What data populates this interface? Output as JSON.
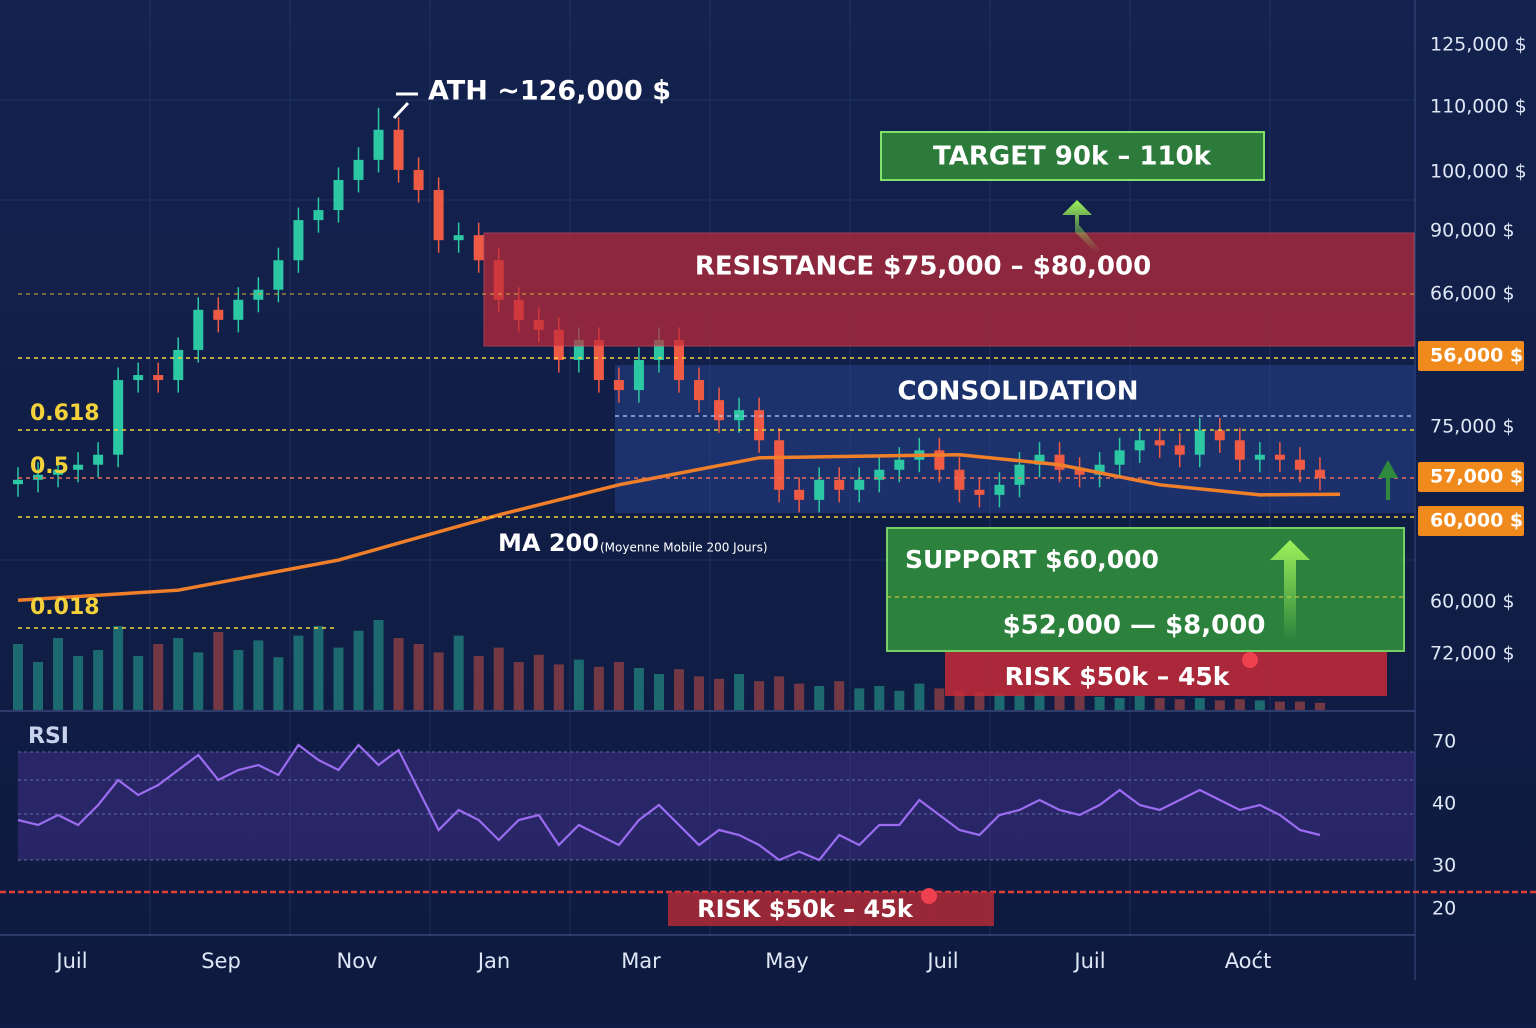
{
  "chart_data": [
    {
      "type": "candlestick",
      "x_labels": [
        "Juil",
        "Sep",
        "Nov",
        "Jan",
        "Mar",
        "May",
        "Juil",
        "Juil",
        "Aoćt"
      ],
      "xlim": [
        0,
        67
      ],
      "ylim": [
        30000,
        140000
      ],
      "y_axis_labels": [
        {
          "text": "125,000 $",
          "highlight": false
        },
        {
          "text": "110,000 $",
          "highlight": false
        },
        {
          "text": "100,000 $",
          "highlight": false
        },
        {
          "text": "90,000 $",
          "highlight": false
        },
        {
          "text": "66,000 $",
          "highlight": false
        },
        {
          "text": "56,000 $",
          "highlight": true
        },
        {
          "text": "75,000 $",
          "highlight": false
        },
        {
          "text": "57,000 $",
          "highlight": true
        },
        {
          "text": "60,000 $",
          "highlight": true
        },
        {
          "text": "60,000 $",
          "highlight": false
        },
        {
          "text": "72,000 $",
          "highlight": false
        }
      ],
      "colors": {
        "up": "#2cc7a3",
        "down": "#ef5a45"
      },
      "open": [
        66000,
        66700,
        67500,
        68300,
        69100,
        70700,
        82600,
        83400,
        82600,
        87400,
        93800,
        92200,
        95400,
        97000,
        101700,
        108100,
        109700,
        114500,
        117700,
        122500,
        116100,
        112900,
        104900,
        105700,
        101700,
        95400,
        92200,
        90600,
        85800,
        89000,
        82600,
        81000,
        85800,
        89000,
        82600,
        79400,
        76200,
        77800,
        73000,
        65100,
        63500,
        66700,
        65100,
        66700,
        68300,
        69900,
        71400,
        68300,
        65100,
        64300,
        65900,
        69100,
        70700,
        68300,
        67500,
        69100,
        71400,
        73000,
        72200,
        70700,
        74600,
        73000,
        69900,
        70700,
        69900,
        68300
      ],
      "high": [
        68700,
        69500,
        70300,
        71100,
        72700,
        84600,
        85400,
        85400,
        89400,
        95800,
        95800,
        97400,
        99000,
        103700,
        110100,
        111700,
        116500,
        119700,
        126000,
        124500,
        118100,
        114900,
        107700,
        107700,
        103700,
        97400,
        94200,
        92600,
        91000,
        91000,
        84600,
        87800,
        91000,
        91000,
        84600,
        81400,
        79800,
        79800,
        75000,
        67100,
        68700,
        68700,
        68700,
        70300,
        71900,
        73400,
        73400,
        70300,
        67100,
        67900,
        71100,
        72700,
        72700,
        70300,
        71100,
        73400,
        75000,
        75000,
        74200,
        76600,
        76600,
        75000,
        72700,
        72700,
        71900,
        70300
      ],
      "low": [
        64000,
        64700,
        65500,
        66300,
        67100,
        68700,
        80600,
        80600,
        80600,
        85400,
        90200,
        90200,
        93400,
        95000,
        99700,
        106100,
        107700,
        112500,
        115700,
        114100,
        110900,
        102900,
        102900,
        99700,
        93400,
        90200,
        88600,
        83800,
        83800,
        80600,
        79000,
        79000,
        83800,
        80600,
        77400,
        74200,
        74200,
        71000,
        63100,
        61500,
        61500,
        63100,
        63100,
        64700,
        66300,
        67900,
        66300,
        63100,
        62300,
        62300,
        63900,
        67100,
        66300,
        65500,
        65500,
        67100,
        69400,
        70200,
        68700,
        68700,
        71000,
        67900,
        67900,
        67900,
        66300,
        65000
      ],
      "close": [
        66700,
        67500,
        68300,
        69100,
        70700,
        82600,
        83400,
        82600,
        87400,
        93800,
        92200,
        95400,
        97000,
        101700,
        108100,
        109700,
        114500,
        117700,
        122500,
        116100,
        112900,
        104900,
        105700,
        101700,
        95400,
        92200,
        90600,
        85800,
        89000,
        82600,
        81000,
        85800,
        89000,
        82600,
        79400,
        76200,
        77800,
        73000,
        65100,
        63500,
        66700,
        65100,
        66700,
        68300,
        69900,
        71400,
        68300,
        65100,
        64300,
        65900,
        69100,
        70700,
        68300,
        67500,
        69100,
        71400,
        73000,
        72200,
        70700,
        74600,
        73000,
        69900,
        70700,
        69900,
        68300,
        67000
      ],
      "volume": {
        "lim": [
          0,
          100
        ],
        "values": [
          55,
          40,
          60,
          45,
          50,
          70,
          45,
          55,
          60,
          48,
          65,
          50,
          58,
          44,
          62,
          70,
          52,
          66,
          75,
          60,
          55,
          48,
          62,
          45,
          52,
          40,
          46,
          38,
          42,
          36,
          40,
          35,
          30,
          34,
          28,
          26,
          30,
          24,
          28,
          22,
          20,
          24,
          18,
          20,
          16,
          22,
          18,
          16,
          15,
          14,
          13,
          14,
          12,
          12,
          11,
          10,
          12,
          10,
          9,
          10,
          8,
          9,
          8,
          7,
          7,
          6
        ]
      },
      "ma": {
        "name": "MA 200",
        "note": "(Moyenne Mobile 200 Jours)",
        "color": "#f07f2a",
        "x": [
          0,
          8,
          16,
          24,
          30,
          37,
          47,
          52,
          57,
          62,
          66
        ],
        "values": [
          47500,
          49100,
          53900,
          61100,
          65900,
          70200,
          70700,
          69100,
          65900,
          64300,
          64400
        ]
      },
      "annotations": {
        "ath": "ATH ~126,000 $",
        "target": "TARGET 90k – 110k",
        "resistance": "RESISTANCE $75,000 – $80,000",
        "consolidation": "CONSOLIDATION",
        "fib_618": "0.618",
        "fib_5": "0.5",
        "fib_018": "0.018",
        "support": "SUPPORT $60,000",
        "support_range": "$52,000 — $8,000",
        "risk": "RISK $50k – 45k"
      }
    },
    {
      "type": "line",
      "title": "RSI",
      "xlim": [
        0,
        67
      ],
      "ylim": [
        12,
        75
      ],
      "y_axis_labels": [
        "70",
        "40",
        "30",
        "20"
      ],
      "color": "#9b6cf0",
      "values": [
        46.5,
        45,
        48,
        45,
        51,
        58.5,
        54,
        57,
        61.5,
        66,
        58.5,
        61.5,
        63,
        60,
        69,
        64.5,
        61.5,
        69,
        63,
        67.5,
        55.5,
        43.5,
        49.5,
        46.5,
        40.5,
        46.5,
        48,
        39,
        45,
        42,
        39,
        46.5,
        51,
        45,
        39,
        43.5,
        42,
        39,
        34.5,
        37,
        34.5,
        42,
        39,
        45,
        45,
        52.5,
        48,
        43.5,
        42,
        48,
        49.5,
        52.5,
        49.5,
        48,
        51,
        55.5,
        51,
        49.5,
        52.5,
        55.5,
        52.5,
        49.5,
        51,
        48,
        43.5,
        42
      ],
      "risk": "RISK  $50k – 45k"
    }
  ]
}
